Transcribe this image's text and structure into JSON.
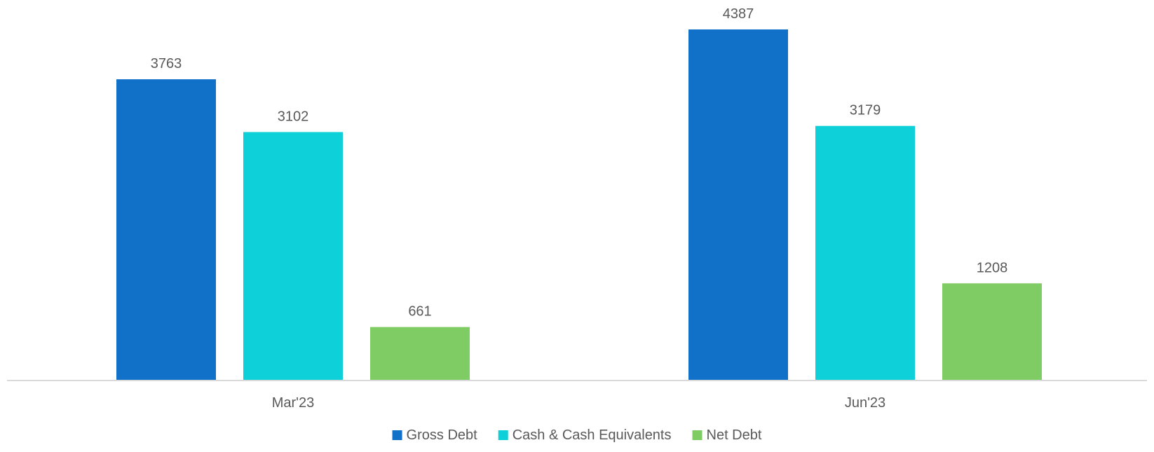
{
  "chart_data": {
    "type": "bar",
    "categories": [
      "Mar'23",
      "Jun'23"
    ],
    "series": [
      {
        "name": "Gross Debt",
        "values": [
          3763,
          4387
        ],
        "color": "#1170C8"
      },
      {
        "name": "Cash & Cash Equivalents",
        "values": [
          3102,
          3179
        ],
        "color": "#0DD0D9"
      },
      {
        "name": "Net Debt",
        "values": [
          661,
          1208
        ],
        "color": "#7FCC64"
      }
    ],
    "title": "",
    "xlabel": "",
    "ylabel": "",
    "ylim": [
      0,
      4500
    ],
    "grid": false,
    "y_axis_visible": false,
    "data_labels": true,
    "legend_position": "bottom",
    "colors": {
      "axis": "#D9D9D9",
      "text": "#595959",
      "background": "#FFFFFF"
    }
  }
}
